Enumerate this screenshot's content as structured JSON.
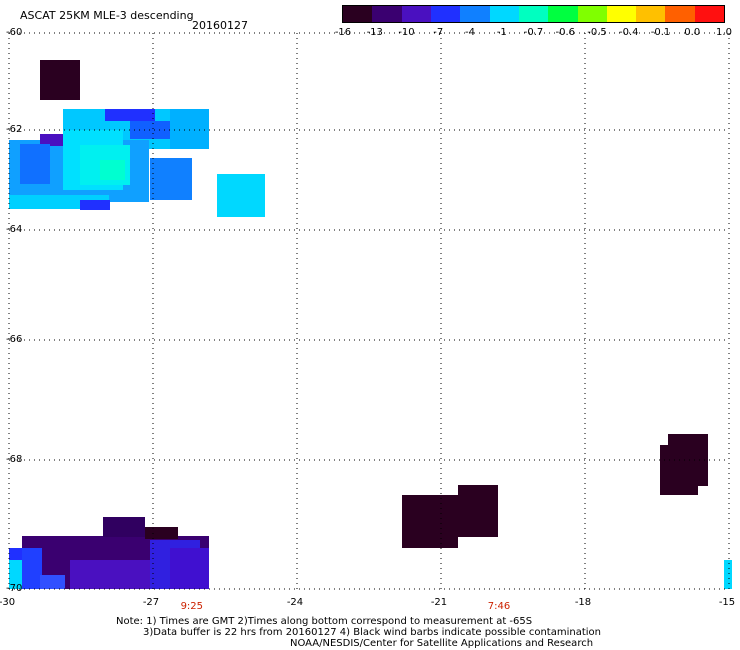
{
  "title": "ASCAT 25KM MLE-3 descending",
  "date": "20160127",
  "colorbar": {
    "labels": [
      "-16",
      "-13",
      "-10",
      "-7",
      "-4",
      "-1",
      "-0.7",
      "-0.6",
      "-0.5",
      "-0.4",
      "-0.1",
      "0.0",
      "1.0"
    ],
    "colors": [
      "#2a0020",
      "#3a0070",
      "#4a10c0",
      "#2030ff",
      "#1080ff",
      "#00d8ff",
      "#00ffc0",
      "#00ff40",
      "#80ff00",
      "#ffff00",
      "#ffc000",
      "#ff6000",
      "#ff1010"
    ]
  },
  "map": {
    "lat_labels": [
      "-60",
      "-62",
      "-64",
      "-66",
      "-68",
      "-70"
    ],
    "lon_labels": [
      "-30",
      "-27",
      "-24",
      "-21",
      "-18",
      "-15"
    ],
    "time_labels": [
      {
        "text": "9:25",
        "lon": -26.4
      },
      {
        "text": "7:46",
        "lon": -20.0
      }
    ],
    "time_color": "#cc2200"
  },
  "notes": [
    "Note: 1) Times are GMT 2)Times along bottom correspond to measurement at -65S",
    "3)Data buffer is 22 hrs from 20160127 4) Black wind barbs indicate possible contamination",
    "NOAA/NESDIS/Center for Satellite Applications and Research"
  ]
}
